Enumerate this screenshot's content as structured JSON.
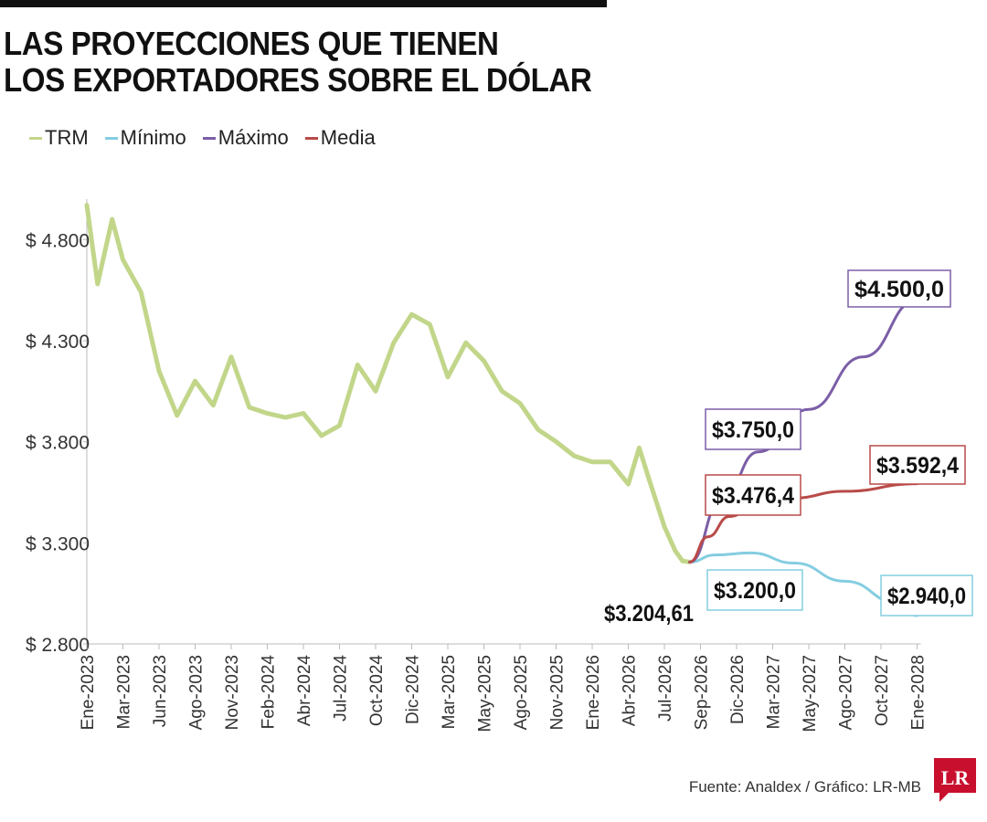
{
  "header": {
    "title_line1": "LAS PROYECCIONES QUE TIENEN",
    "title_line2": "LOS EXPORTADORES SOBRE EL DÓLAR"
  },
  "footer": {
    "source": "Fuente: Analdex / Gráfico: LR-MB",
    "logo_text": "LR"
  },
  "colors": {
    "trm": "#c2d68a",
    "minimo": "#84cde0",
    "maximo": "#7b5ea7",
    "media": "#b94a48",
    "axis": "#bbbbbb",
    "text": "#111111",
    "logo": "#c8102e"
  },
  "chart_data": {
    "type": "line",
    "title": "LAS PROYECCIONES QUE TIENEN LOS EXPORTADORES SOBRE EL DÓLAR",
    "ylim": [
      2800,
      5000
    ],
    "yticks": [
      2800,
      3300,
      3800,
      4300,
      4800
    ],
    "ytick_labels": [
      "$ 2.800",
      "$ 3.300",
      "$ 3.800",
      "$ 4.300",
      "$ 4.800"
    ],
    "x_tick_labels": [
      "Ene-2023",
      "Mar-2023",
      "Jun-2023",
      "Ago-2023",
      "Nov-2023",
      "Feb-2024",
      "Abr-2024",
      "Jul-2024",
      "Oct-2024",
      "Dic-2024",
      "Mar-2025",
      "May-2025",
      "Ago-2025",
      "Nov-2025",
      "Ene-2026",
      "Abr-2026",
      "Jul-2026",
      "Sep-2026",
      "Dic-2026",
      "Mar-2027",
      "May-2027",
      "Ago-2027",
      "Oct-2027",
      "Ene-2028"
    ],
    "legend": [
      "TRM",
      "Mínimo",
      "Máximo",
      "Media"
    ],
    "series": [
      {
        "name": "TRM",
        "x_index": [
          0,
          0.3,
          0.7,
          1.0,
          1.5,
          2.0,
          2.5,
          3.0,
          3.5,
          4.0,
          4.5,
          5.0,
          5.5,
          6.0,
          6.5,
          7.0,
          7.5,
          8.0,
          8.5,
          9.0,
          9.5,
          10.0,
          10.5,
          11.0,
          11.5,
          12.0,
          12.5,
          13.0,
          13.5,
          14.0,
          14.5,
          15.0,
          15.3,
          15.6,
          16.0,
          16.3,
          16.5,
          16.7
        ],
        "values": [
          4970,
          4580,
          4900,
          4700,
          4540,
          4150,
          3930,
          4100,
          3980,
          4220,
          3970,
          3940,
          3920,
          3940,
          3830,
          3880,
          4180,
          4050,
          4290,
          4430,
          4380,
          4120,
          4290,
          4200,
          4050,
          3990,
          3860,
          3800,
          3730,
          3700,
          3700,
          3590,
          3770,
          3600,
          3380,
          3260,
          3210,
          3205
        ]
      },
      {
        "name": "Mínimo",
        "x_index": [
          16.7,
          17.4,
          18.4,
          19.6,
          21.0,
          22.5,
          23.0
        ],
        "values": [
          3204.61,
          3240,
          3250,
          3200,
          3110,
          3000,
          2940
        ],
        "labels": [
          {
            "x_index": 16.7,
            "text": "$3.204,61"
          },
          {
            "x_index": 18.4,
            "text": "$3.200,0"
          },
          {
            "x_index": 23.0,
            "text": "$2.940,0"
          }
        ]
      },
      {
        "name": "Máximo",
        "x_index": [
          16.7,
          17.6,
          18.6,
          20.0,
          21.5,
          23.0
        ],
        "values": [
          3204.61,
          3520,
          3750,
          3960,
          4220,
          4500
        ],
        "labels": [
          {
            "x_index": 17.6,
            "text": "$3.750,0"
          },
          {
            "x_index": 23.0,
            "text": "$4.500,0"
          }
        ]
      },
      {
        "name": "Media",
        "x_index": [
          16.7,
          17.2,
          17.8,
          18.5,
          19.5,
          21.0,
          23.0
        ],
        "values": [
          3204.61,
          3330,
          3430,
          3476.4,
          3520,
          3555,
          3592.4
        ],
        "labels": [
          {
            "x_index": 18.5,
            "text": "$3.476,4"
          },
          {
            "x_index": 23.0,
            "text": "$3.592,4"
          }
        ]
      }
    ]
  }
}
